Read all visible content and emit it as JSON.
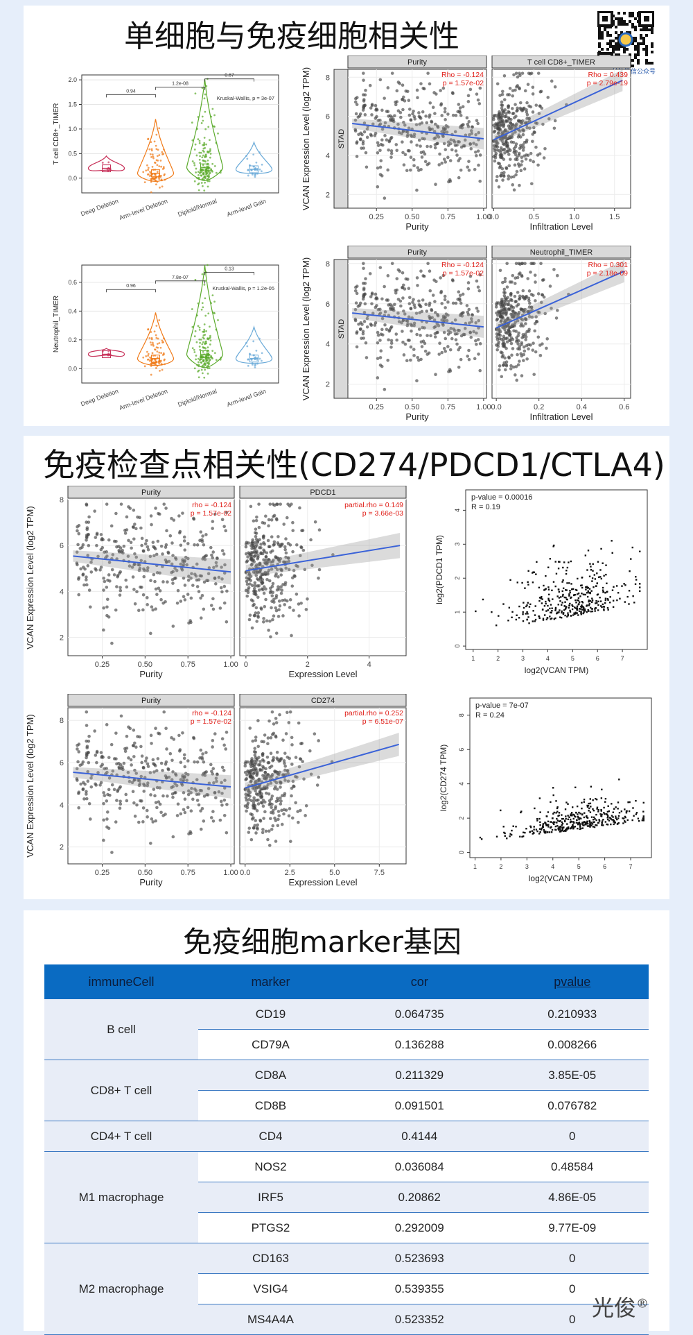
{
  "sections": {
    "s1_title": "单细胞与免疫细胞相关性",
    "s2_title": "免疫检查点相关性(CD274/PDCD1/CTLA4)",
    "s3_title": "免疫细胞marker基因"
  },
  "watermark": {
    "label": "关注微信公众号"
  },
  "brand": {
    "text": "光俊",
    "mark": "®"
  },
  "violin_charts": [
    {
      "ylabel": "T cell CD8+_TIMER",
      "yticks": [
        "0.0",
        "0.5",
        "1.0",
        "1.5",
        "2.0"
      ],
      "ylim": [
        -0.3,
        2.1
      ],
      "categories": [
        "Deep Deletion",
        "Arm-level Deletion",
        "Diploid/Normal",
        "Arm-level Gain"
      ],
      "colors": [
        "#c8325a",
        "#f07a18",
        "#5aaa2a",
        "#6aaad8"
      ],
      "medians": [
        0.2,
        0.1,
        0.22,
        0.18
      ],
      "spreads": [
        0.25,
        1.1,
        1.8,
        0.55
      ],
      "brackets": [
        {
          "from": 1,
          "to": 2,
          "label": "0.94",
          "y": 1.7
        },
        {
          "from": 2,
          "to": 3,
          "label": "1.2e-08",
          "y": 1.85
        },
        {
          "from": 3,
          "to": 4,
          "label": "0.67",
          "y": 2.02
        }
      ],
      "test": "Kruskal-Wallis, p = 3e-07"
    },
    {
      "ylabel": "Neutrophil_TIMER",
      "yticks": [
        "0.0",
        "0.2",
        "0.4",
        "0.6"
      ],
      "ylim": [
        -0.1,
        0.72
      ],
      "categories": [
        "Deep Deletion",
        "Arm-level Deletion",
        "Diploid/Normal",
        "Arm-level Gain"
      ],
      "colors": [
        "#c8325a",
        "#f07a18",
        "#5aaa2a",
        "#6aaad8"
      ],
      "medians": [
        0.1,
        0.07,
        0.1,
        0.07
      ],
      "spreads": [
        0.04,
        0.32,
        0.62,
        0.22
      ],
      "brackets": [
        {
          "from": 1,
          "to": 2,
          "label": "0.96",
          "y": 0.55
        },
        {
          "from": 2,
          "to": 3,
          "label": "7.8e-07",
          "y": 0.61
        },
        {
          "from": 3,
          "to": 4,
          "label": "0.13",
          "y": 0.67
        }
      ],
      "test": "Kruskal-Wallis, p = 1.2e-05"
    }
  ],
  "timer_charts": [
    {
      "ylabel": "VCAN Expression Level (log2 TPM)",
      "strip": "STAD",
      "panels": [
        {
          "header": "Purity",
          "xlabel": "Purity",
          "xlim": [
            0.05,
            1.02
          ],
          "xticks": [
            0.25,
            0.5,
            0.75,
            1.0
          ],
          "xticklabels": [
            "0.25",
            "0.50",
            "0.75",
            "1.00"
          ],
          "rho": "Rho = -0.124",
          "p": "p = 1.57e-02",
          "slope": -0.85,
          "intercept": 5.7,
          "xmin": 0.08,
          "xmax": 1.0
        },
        {
          "header": "T cell CD8+_TIMER",
          "xlabel": "Infiltration Level",
          "xlim": [
            -0.02,
            1.7
          ],
          "xticks": [
            0,
            0.5,
            1.0,
            1.5
          ],
          "xticklabels": [
            "0.0",
            "0.5",
            "1.0",
            "1.5"
          ],
          "rho": "Rho = 0.439",
          "p": "p = 2.79e-19",
          "slope": 1.9,
          "intercept": 4.8,
          "xmin": 0.0,
          "xmax": 1.6
        }
      ],
      "ylim": [
        1.3,
        8.4
      ],
      "yticks": [
        2,
        4,
        6,
        8
      ]
    },
    {
      "ylabel": "VCAN Expression Level (log2 TPM)",
      "strip": "STAD",
      "panels": [
        {
          "header": "Purity",
          "xlabel": "Purity",
          "xlim": [
            0.05,
            1.02
          ],
          "xticks": [
            0.25,
            0.5,
            0.75,
            1.0
          ],
          "xticklabels": [
            "0.25",
            "0.50",
            "0.75",
            "1.00"
          ],
          "rho": "Rho = -0.124",
          "p": "p = 1.57e-02",
          "slope": -0.75,
          "intercept": 5.6,
          "xmin": 0.08,
          "xmax": 1.0
        },
        {
          "header": "Neutrophil_TIMER",
          "xlabel": "Infiltration Level",
          "xlim": [
            -0.02,
            0.63
          ],
          "xticks": [
            0,
            0.2,
            0.4,
            0.6
          ],
          "xticklabels": [
            "0.0",
            "0.2",
            "0.4",
            "0.6"
          ],
          "rho": "Rho = 0.301",
          "p": "p = 2.18e-09",
          "slope": 4.7,
          "intercept": 4.8,
          "xmin": 0.0,
          "xmax": 0.6
        }
      ],
      "ylim": [
        1.3,
        8.2
      ],
      "yticks": [
        2,
        4,
        6,
        8
      ]
    },
    {
      "ylabel": "VCAN Expression Level (log2 TPM)",
      "strip": "",
      "panels": [
        {
          "header": "Purity",
          "xlabel": "Purity",
          "xlim": [
            0.05,
            1.02
          ],
          "xticks": [
            0.25,
            0.5,
            0.75,
            1.0
          ],
          "xticklabels": [
            "0.25",
            "0.50",
            "0.75",
            "1.00"
          ],
          "rho": "rho = -0.124",
          "p": "p = 1.57e-02",
          "slope": -0.75,
          "intercept": 5.6,
          "xmin": 0.08,
          "xmax": 1.0
        },
        {
          "header": "PDCD1",
          "xlabel": "Expression Level",
          "xlim": [
            -0.2,
            5.2
          ],
          "xticks": [
            0,
            2,
            4
          ],
          "xticklabels": [
            "0",
            "2",
            "4"
          ],
          "rho": "partial.rho = 0.149",
          "p": "p = 3.66e-03",
          "slope": 0.22,
          "intercept": 4.9,
          "xmin": 0.0,
          "xmax": 5.0
        }
      ],
      "ylim": [
        1.2,
        8.0
      ],
      "yticks": [
        2,
        4,
        6,
        8
      ]
    },
    {
      "ylabel": "VCAN Expression Level (log2 TPM)",
      "strip": "",
      "panels": [
        {
          "header": "Purity",
          "xlabel": "Purity",
          "xlim": [
            0.05,
            1.02
          ],
          "xticks": [
            0.25,
            0.5,
            0.75,
            1.0
          ],
          "xticklabels": [
            "0.25",
            "0.50",
            "0.75",
            "1.00"
          ],
          "rho": "rho = -0.124",
          "p": "p = 1.57e-02",
          "slope": -0.75,
          "intercept": 5.6,
          "xmin": 0.08,
          "xmax": 1.0
        },
        {
          "header": "CD274",
          "xlabel": "Expression Level",
          "xlim": [
            -0.3,
            9.0
          ],
          "xticks": [
            0,
            2.5,
            5.0,
            7.5
          ],
          "xticklabels": [
            "0.0",
            "2.5",
            "5.0",
            "7.5"
          ],
          "rho": "partial.rho = 0.252",
          "p": "p = 6.51e-07",
          "slope": 0.24,
          "intercept": 4.8,
          "xmin": 0.0,
          "xmax": 8.6
        }
      ],
      "ylim": [
        1.2,
        8.6
      ],
      "yticks": [
        2,
        4,
        6,
        8
      ]
    }
  ],
  "gepia_charts": [
    {
      "xlabel": "log2(VCAN TPM)",
      "ylabel": "log2(PDCD1 TPM)",
      "pvalue": "p-value = 0.00016",
      "r": "R = 0.19",
      "xlim": [
        0.7,
        8.0
      ],
      "ylim": [
        -0.1,
        4.6
      ],
      "xticks": [
        1,
        2,
        3,
        4,
        5,
        6,
        7
      ],
      "yticks": [
        0,
        1,
        2,
        3,
        4
      ],
      "ymean": 1.2,
      "ysd": 0.8,
      "slope": 0.12
    },
    {
      "xlabel": "log2(VCAN TPM)",
      "ylabel": "log2(CD274 TPM)",
      "pvalue": "p-value = 7e-07",
      "r": "R = 0.24",
      "xlim": [
        0.8,
        7.8
      ],
      "ylim": [
        -0.3,
        9.0
      ],
      "xticks": [
        1,
        2,
        3,
        4,
        5,
        6,
        7
      ],
      "yticks": [
        0,
        2,
        4,
        6,
        8
      ],
      "ymean": 1.7,
      "ysd": 0.9,
      "slope": 0.2
    }
  ],
  "marker_table": {
    "headers": [
      "immuneCell",
      "marker",
      "cor",
      "pvalue"
    ],
    "groups": [
      {
        "cell": "B cell",
        "rows": [
          [
            "CD19",
            "0.064735",
            "0.210933"
          ],
          [
            "CD79A",
            "0.136288",
            "0.008266"
          ]
        ]
      },
      {
        "cell": "CD8+ T cell",
        "rows": [
          [
            "CD8A",
            "0.211329",
            "3.85E-05"
          ],
          [
            "CD8B",
            "0.091501",
            "0.076782"
          ]
        ]
      },
      {
        "cell": "CD4+ T cell",
        "rows": [
          [
            "CD4",
            "0.4144",
            "0"
          ]
        ]
      },
      {
        "cell": "M1 macrophage",
        "rows": [
          [
            "NOS2",
            "0.036084",
            "0.48584"
          ],
          [
            "IRF5",
            "0.20862",
            "4.86E-05"
          ],
          [
            "PTGS2",
            "0.292009",
            "9.77E-09"
          ]
        ]
      },
      {
        "cell": "M2 macrophage",
        "rows": [
          [
            "CD163",
            "0.523693",
            "0"
          ],
          [
            "VSIG4",
            "0.539355",
            "0"
          ],
          [
            "MS4A4A",
            "0.523352",
            "0"
          ]
        ]
      }
    ]
  },
  "chart_data": [
    {
      "type": "scatter",
      "title": "",
      "series_note": "VCAN vs Purity (STAD)",
      "xlabel": "Purity",
      "ylabel": "VCAN Expression Level (log2 TPM)",
      "annotations": [
        "Rho = -0.124",
        "p = 1.57e-02"
      ]
    },
    {
      "type": "scatter",
      "xlabel": "Infiltration Level",
      "ylabel": "VCAN Expression Level (log2 TPM)",
      "annotations": [
        "Rho = 0.439",
        "p = 2.79e-19"
      ]
    },
    {
      "type": "table",
      "columns": [
        "immuneCell",
        "marker",
        "cor",
        "pvalue"
      ]
    }
  ]
}
